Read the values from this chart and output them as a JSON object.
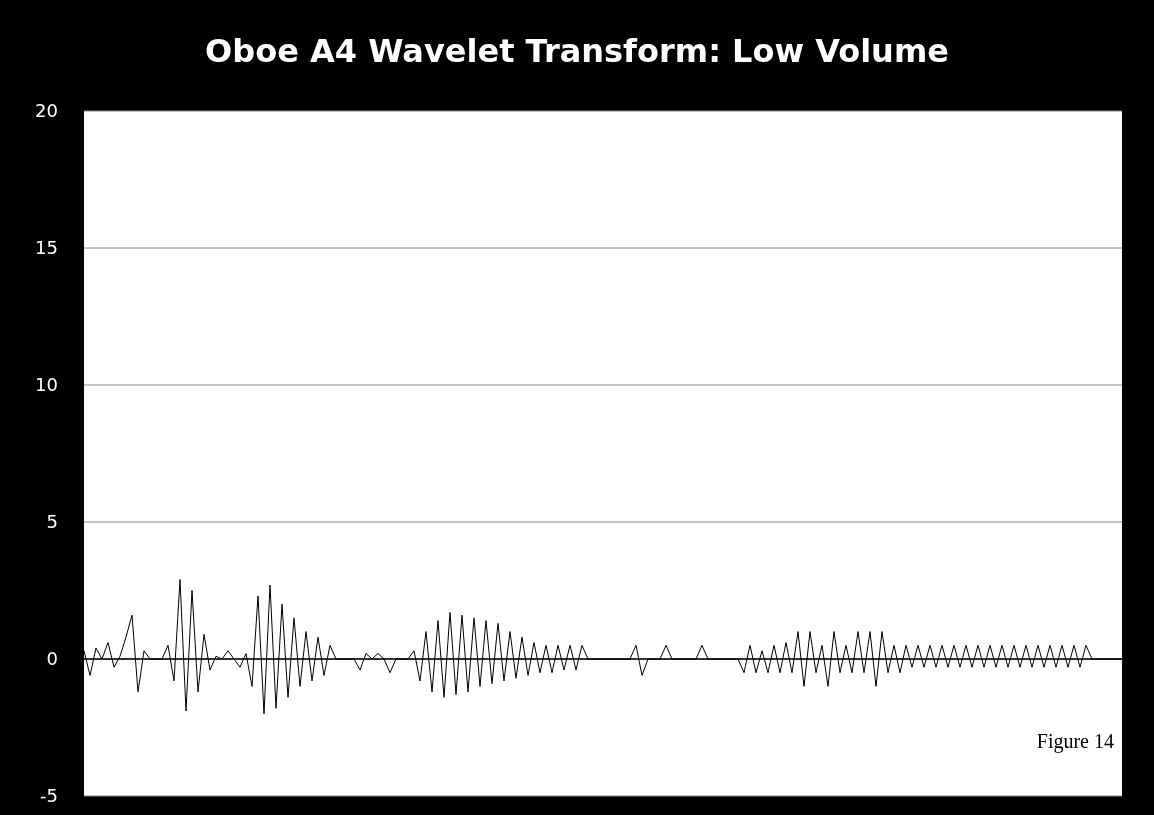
{
  "chart_data": {
    "type": "line",
    "title": "Oboe A4 Wavelet Transform: Low Volume",
    "categories": [
      null,
      null,
      null,
      null,
      null,
      null,
      null,
      null,
      null,
      null,
      null,
      null,
      null,
      null,
      null,
      null,
      null,
      null,
      null,
      null,
      null,
      null,
      null,
      null,
      null,
      null,
      null,
      null,
      null,
      null,
      null,
      null,
      null,
      null,
      null,
      null,
      null,
      null,
      null,
      null,
      null,
      null,
      null,
      null,
      null,
      null,
      null,
      null,
      null,
      null,
      null,
      null,
      null,
      null,
      null,
      null,
      null,
      null,
      null,
      null,
      null,
      null,
      null,
      null,
      null,
      null,
      null,
      null,
      null,
      null,
      null,
      null,
      null,
      null,
      null,
      null,
      null,
      null,
      null,
      null,
      null,
      null,
      null,
      null,
      null,
      null,
      null,
      null,
      null,
      null,
      null,
      null,
      null,
      null,
      null,
      null,
      null,
      null,
      null,
      null,
      null,
      null,
      null,
      null,
      null,
      null,
      null,
      null,
      null,
      null,
      null,
      null,
      null,
      null,
      null,
      null,
      null,
      null,
      null,
      null,
      null,
      null,
      null,
      null,
      null,
      null,
      null,
      null,
      null,
      null,
      null,
      null,
      null,
      null,
      null,
      null,
      null,
      null,
      null,
      null,
      null,
      null,
      null,
      null,
      null,
      null,
      null,
      null,
      null,
      null,
      null,
      null,
      null,
      null,
      null,
      null,
      null,
      null,
      null,
      null,
      null,
      null,
      null,
      null,
      null,
      null,
      null,
      null,
      null,
      null,
      null,
      null,
      null,
      null
    ],
    "series": [
      {
        "color": "#000000",
        "values": [
          0.3,
          -0.6,
          0.4,
          0,
          0.6,
          -0.3,
          0.1,
          0.8,
          1.6,
          -1.2,
          0.3,
          0,
          0,
          0,
          0.5,
          -0.8,
          2.9,
          -1.9,
          2.5,
          -1.2,
          0.9,
          -0.4,
          0.1,
          0,
          0.3,
          0,
          -0.3,
          0.2,
          -1.0,
          2.3,
          -2.0,
          2.7,
          -1.8,
          2.0,
          -1.4,
          1.5,
          -1.0,
          1.0,
          -0.8,
          0.8,
          -0.6,
          0.5,
          0,
          0,
          0,
          0,
          -0.4,
          0.2,
          0,
          0.2,
          0,
          -0.5,
          0,
          0,
          0,
          0.3,
          -0.8,
          1.0,
          -1.2,
          1.4,
          -1.4,
          1.7,
          -1.3,
          1.6,
          -1.2,
          1.5,
          -1.0,
          1.4,
          -0.9,
          1.3,
          -0.8,
          1.0,
          -0.7,
          0.8,
          -0.6,
          0.6,
          -0.5,
          0.5,
          -0.5,
          0.5,
          -0.4,
          0.5,
          -0.4,
          0.5,
          0,
          0,
          0,
          0,
          0,
          0,
          0,
          0,
          0.5,
          -0.6,
          0,
          0,
          0,
          0.5,
          0,
          0,
          0,
          0,
          0,
          0.5,
          0,
          0,
          0,
          0,
          0,
          0,
          -0.5,
          0.5,
          -0.5,
          0.3,
          -0.5,
          0.5,
          -0.5,
          0.6,
          -0.5,
          1.0,
          -1.0,
          1.0,
          -0.5,
          0.5,
          -1.0,
          1.0,
          -0.5,
          0.5,
          -0.5,
          1.0,
          -0.5,
          1.0,
          -1.0,
          1.0,
          -0.5,
          0.5,
          -0.5,
          0.5,
          -0.3,
          0.5,
          -0.3,
          0.5,
          -0.3,
          0.5,
          -0.3,
          0.5,
          -0.3,
          0.5,
          -0.3,
          0.5,
          -0.3,
          0.5,
          -0.3,
          0.5,
          -0.3,
          0.5,
          -0.3,
          0.5,
          -0.3,
          0.5,
          -0.3,
          0.5,
          -0.3,
          0.5,
          -0.3,
          0.5,
          -0.3,
          0.5,
          0,
          0,
          0,
          0,
          0,
          0
        ]
      }
    ],
    "ylim": [
      -5,
      20
    ],
    "yticks": [
      -5,
      0,
      5,
      10,
      15,
      20
    ],
    "grid": "y",
    "annotations": [
      "Figure 14"
    ]
  }
}
